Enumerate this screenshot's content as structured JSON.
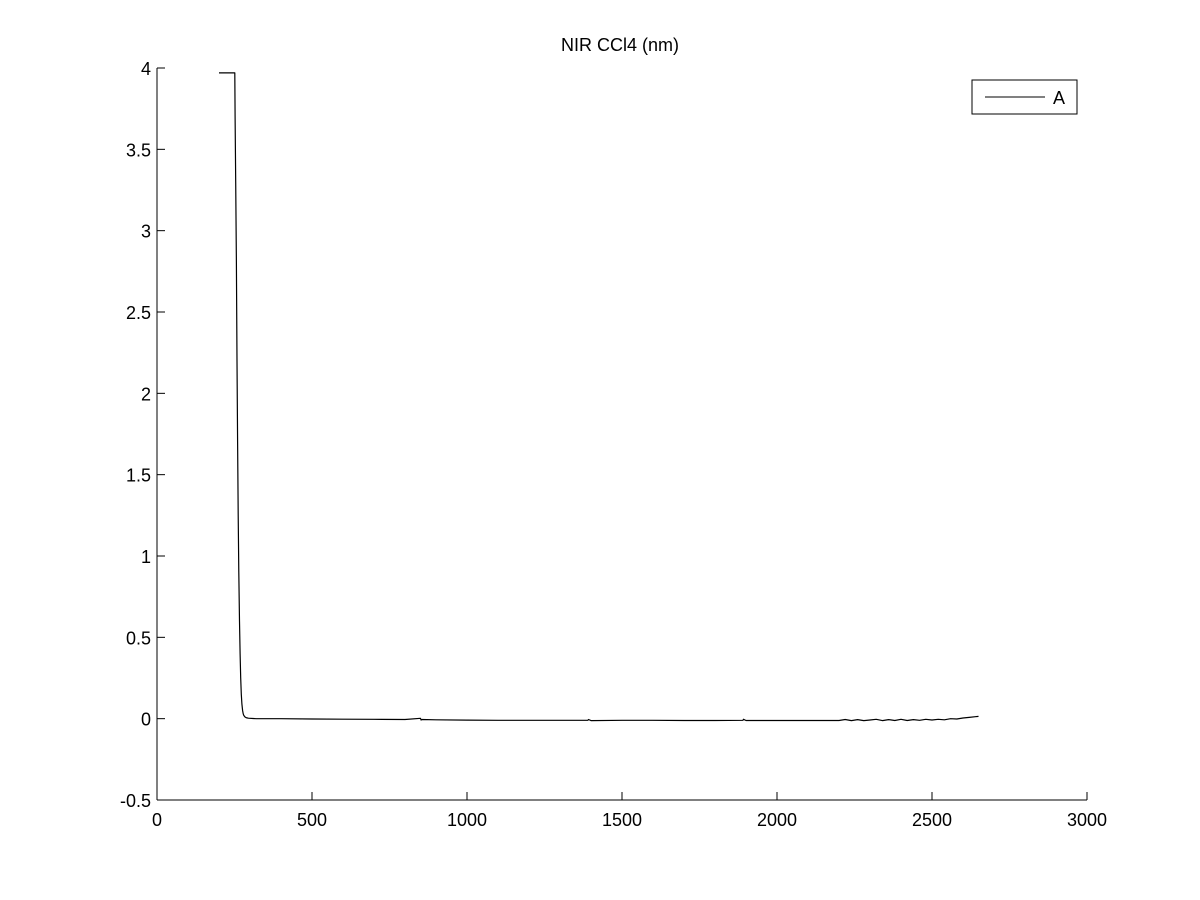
{
  "chart_data": {
    "type": "line",
    "title": "NIR CCl4 (nm)",
    "xlabel": "",
    "ylabel": "",
    "xlim": [
      0,
      3000
    ],
    "ylim": [
      -0.5,
      4
    ],
    "xticks": [
      0,
      500,
      1000,
      1500,
      2000,
      2500,
      3000
    ],
    "xtick_labels": [
      "0",
      "500",
      "1000",
      "1500",
      "2000",
      "2500",
      "3000"
    ],
    "yticks": [
      -0.5,
      0,
      0.5,
      1,
      1.5,
      2,
      2.5,
      3,
      3.5,
      4
    ],
    "ytick_labels": [
      "-0.5",
      "0",
      "0.5",
      "1",
      "1.5",
      "2",
      "2.5",
      "3",
      "3.5",
      "4"
    ],
    "grid": false,
    "legend_position": "top-right",
    "series": [
      {
        "name": "A",
        "color": "#000000",
        "x": [
          200,
          250,
          251,
          252,
          254,
          256,
          258,
          260,
          262,
          264,
          266,
          268,
          270,
          272,
          274,
          276,
          278,
          280,
          283,
          286,
          290,
          295,
          300,
          310,
          320,
          350,
          400,
          500,
          600,
          700,
          800,
          850,
          852,
          855,
          900,
          1000,
          1100,
          1200,
          1300,
          1390,
          1392,
          1400,
          1500,
          1600,
          1700,
          1800,
          1890,
          1892,
          1900,
          2000,
          2100,
          2200,
          2220,
          2240,
          2260,
          2280,
          2300,
          2320,
          2340,
          2360,
          2380,
          2400,
          2420,
          2440,
          2460,
          2480,
          2500,
          2520,
          2540,
          2560,
          2580,
          2600,
          2620,
          2640,
          2650
        ],
        "y": [
          3.97,
          3.97,
          3.97,
          3.7,
          3.3,
          2.8,
          2.2,
          1.7,
          1.25,
          0.9,
          0.6,
          0.4,
          0.25,
          0.15,
          0.09,
          0.05,
          0.03,
          0.02,
          0.012,
          0.008,
          0.005,
          0.003,
          0.002,
          0.001,
          0.0,
          0.0,
          0.0,
          -0.002,
          -0.003,
          -0.004,
          -0.005,
          0.002,
          -0.008,
          -0.005,
          -0.007,
          -0.009,
          -0.01,
          -0.01,
          -0.01,
          -0.01,
          -0.005,
          -0.012,
          -0.01,
          -0.01,
          -0.011,
          -0.011,
          -0.01,
          -0.004,
          -0.011,
          -0.011,
          -0.011,
          -0.011,
          -0.005,
          -0.012,
          -0.006,
          -0.012,
          -0.008,
          -0.004,
          -0.012,
          -0.006,
          -0.011,
          -0.004,
          -0.011,
          -0.006,
          -0.01,
          -0.004,
          -0.008,
          -0.004,
          -0.007,
          0.0,
          -0.002,
          0.004,
          0.008,
          0.012,
          0.014
        ]
      }
    ]
  }
}
